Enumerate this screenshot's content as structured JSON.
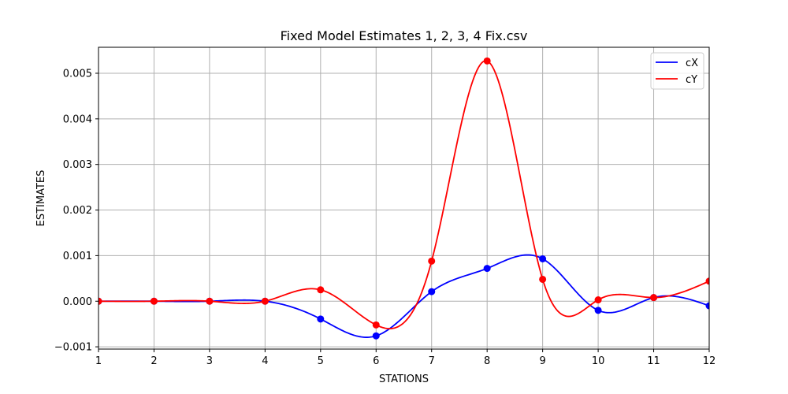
{
  "chart_data": {
    "type": "line",
    "title": "Fixed Model Estimates 1, 2, 3, 4 Fix.csv",
    "xlabel": "STATIONS",
    "ylabel": "ESTIMATES",
    "x": [
      1,
      2,
      3,
      4,
      5,
      6,
      7,
      8,
      9,
      10,
      11,
      12
    ],
    "xlim": [
      1,
      12
    ],
    "ylim": [
      -0.00105,
      0.00557
    ],
    "x_ticks": [
      1,
      2,
      3,
      4,
      5,
      6,
      7,
      8,
      9,
      10,
      11,
      12
    ],
    "y_ticks": [
      -0.001,
      0.0,
      0.001,
      0.002,
      0.003,
      0.004,
      0.005
    ],
    "y_tick_labels": [
      "−0.001",
      "0.000",
      "0.001",
      "0.002",
      "0.003",
      "0.004",
      "0.005"
    ],
    "grid": true,
    "legend_position": "top-right",
    "series": [
      {
        "name": "cX",
        "color": "#0000ff",
        "values": [
          0.0,
          0.0,
          0.0,
          0.0,
          -0.00039,
          -0.00076,
          0.00021,
          0.00072,
          0.00093,
          -0.0002,
          8e-05,
          -0.0001
        ]
      },
      {
        "name": "cY",
        "color": "#ff0000",
        "values": [
          0.0,
          0.0,
          0.0,
          0.0,
          0.00025,
          -0.00052,
          0.00088,
          0.00527,
          0.00048,
          3e-05,
          8e-05,
          0.00044
        ]
      }
    ]
  }
}
